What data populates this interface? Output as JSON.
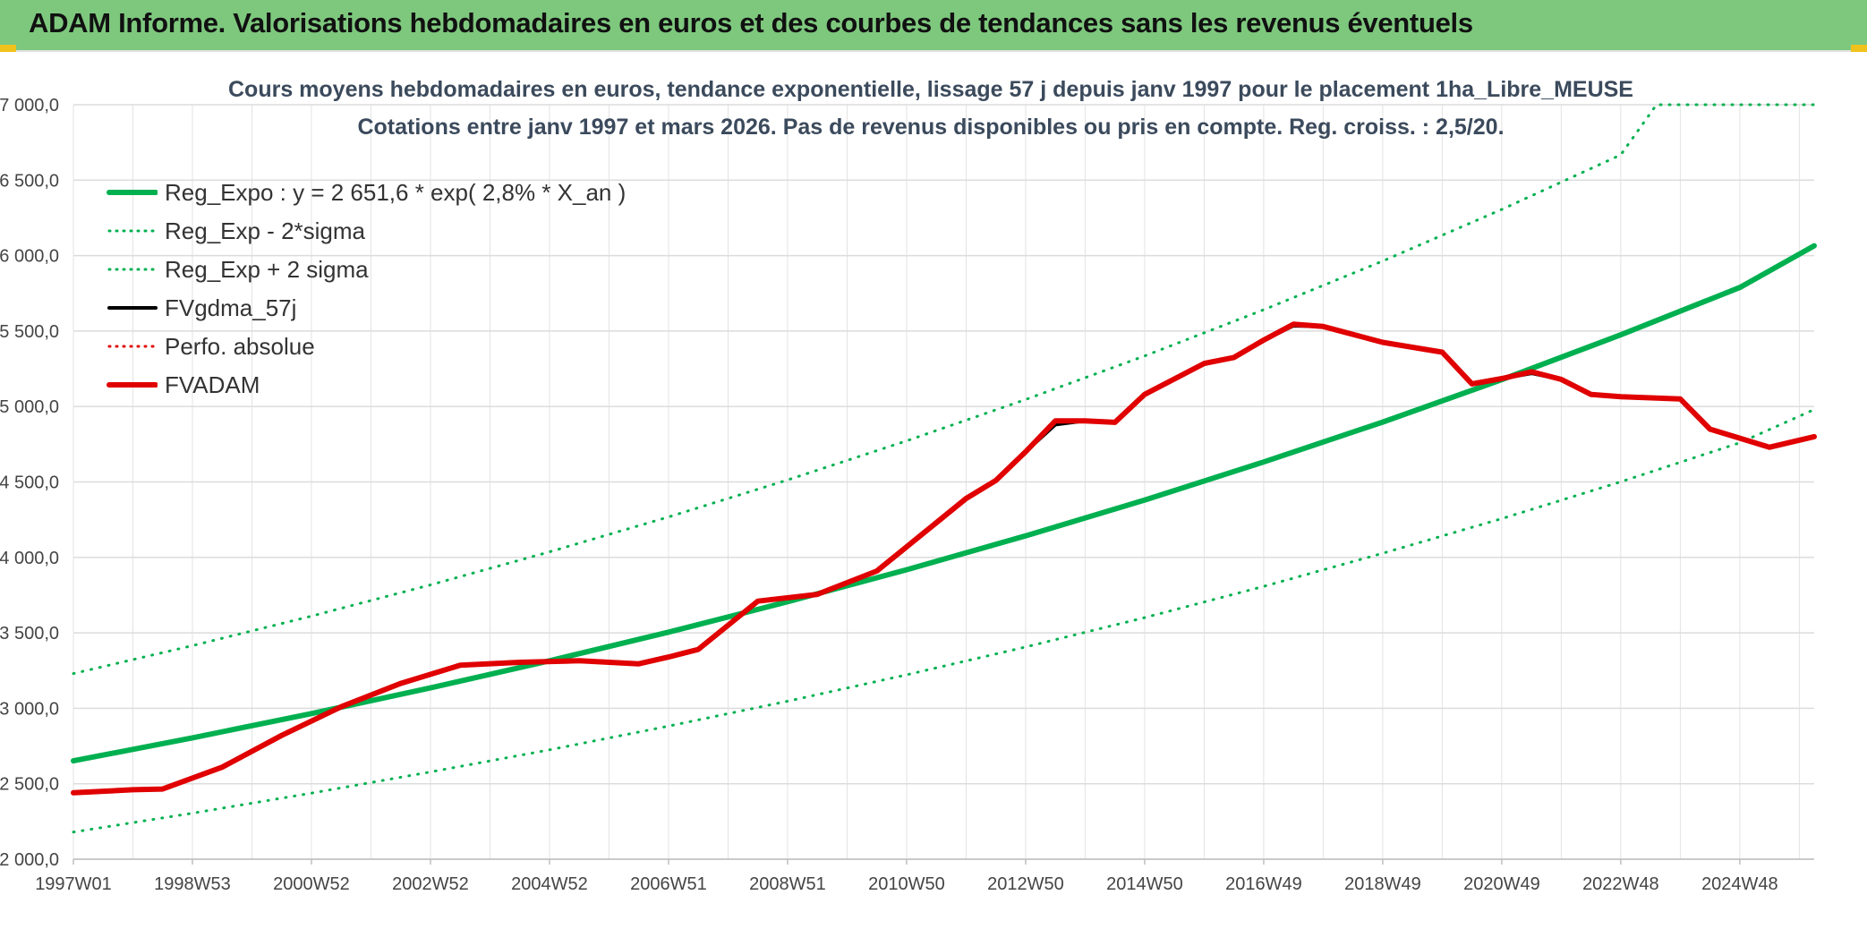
{
  "header": {
    "title": "ADAM Informe. Valorisations hebdomadaires en euros et des courbes de tendances sans les revenus éventuels"
  },
  "chart_data": {
    "type": "line",
    "title": "Cours moyens hebdomadaires en euros, tendance exponentielle, lissage 57 j depuis janv 1997 pour le placement 1ha_Libre_MEUSE",
    "subtitle": "Cotations entre janv 1997 et mars 2026. Pas de revenus disponibles ou pris en compte. Reg. croiss. : 2,5/20.",
    "xlabel": "",
    "ylabel": "",
    "x_ticks": [
      "1997W01",
      "1998W53",
      "2000W52",
      "2002W52",
      "2004W52",
      "2006W51",
      "2008W51",
      "2010W50",
      "2012W50",
      "2014W50",
      "2016W49",
      "2018W49",
      "2020W49",
      "2022W48",
      "2024W48"
    ],
    "x_range": [
      1997.0,
      2026.25
    ],
    "ylim": [
      2000,
      7000
    ],
    "y_ticks": [
      2000,
      2500,
      3000,
      3500,
      4000,
      4500,
      5000,
      5500,
      6000,
      6500,
      7000
    ],
    "y_tick_labels": [
      "2 000,0",
      "2 500,0",
      "3 000,0",
      "3 500,0",
      "4 000,0",
      "4 500,0",
      "5 000,0",
      "5 500,0",
      "6 000,0",
      "6 500,0",
      "7 000,0"
    ],
    "grid": true,
    "legend_position": "top-left",
    "series": [
      {
        "name": "Reg_Expo : y = 2 651,6 * exp( 2,8% *  X_an )",
        "color": "#00b050",
        "style": "solid",
        "width": 6,
        "x": [
          1997.0,
          1999.0,
          2001.0,
          2003.0,
          2005.0,
          2007.0,
          2009.0,
          2011.0,
          2013.0,
          2015.0,
          2017.0,
          2019.0,
          2021.0,
          2023.0,
          2025.0,
          2026.25
        ],
        "y": [
          2652,
          2804,
          2965,
          3135,
          3315,
          3505,
          3706,
          3918,
          4143,
          4380,
          4632,
          4897,
          5178,
          5475,
          5789,
          6065
        ]
      },
      {
        "name": "Reg_Exp - 2*sigma",
        "color": "#00b050",
        "style": "dotted",
        "width": 3,
        "x": [
          1997.0,
          1999.0,
          2001.0,
          2003.0,
          2005.0,
          2007.0,
          2009.0,
          2011.0,
          2013.0,
          2015.0,
          2017.0,
          2019.0,
          2021.0,
          2023.0,
          2025.0,
          2026.25
        ],
        "y": [
          2180,
          2305,
          2438,
          2578,
          2725,
          2882,
          3047,
          3222,
          3406,
          3601,
          3808,
          4027,
          4257,
          4501,
          4760,
          4980
        ]
      },
      {
        "name": "Reg_Exp + 2 sigma",
        "color": "#00b050",
        "style": "dotted",
        "width": 3,
        "x": [
          1997.0,
          1999.0,
          2001.0,
          2003.0,
          2005.0,
          2007.0,
          2009.0,
          2011.0,
          2013.0,
          2015.0,
          2017.0,
          2019.0,
          2021.0,
          2023.0,
          2023.6,
          2026.25
        ],
        "y": [
          3230,
          3415,
          3611,
          3818,
          4037,
          4268,
          4513,
          4772,
          5046,
          5335,
          5641,
          5964,
          6306,
          6668,
          7000,
          7000
        ]
      },
      {
        "name": "FVgdma_57j",
        "color": "#000000",
        "style": "solid",
        "width": 4,
        "x": [
          1997.0,
          1998.0,
          1998.5,
          1999.5,
          2000.5,
          2001.5,
          2002.5,
          2003.5,
          2004.5,
          2005.5,
          2006.5,
          2007.0,
          2007.5,
          2008.5,
          2009.5,
          2010.5,
          2011.5,
          2012.0,
          2012.5,
          2013.0,
          2013.5,
          2014.0,
          2014.5,
          2015.0,
          2016.0,
          2016.5,
          2017.0,
          2017.5,
          2018.0,
          2019.0,
          2020.0,
          2020.5,
          2021.0,
          2021.5,
          2022.0,
          2022.5,
          2023.0,
          2024.0,
          2024.5,
          2025.0,
          2025.5,
          2026.25
        ],
        "y": [
          2440,
          2460,
          2465,
          2610,
          2820,
          3010,
          3165,
          3285,
          3305,
          3315,
          3295,
          3340,
          3390,
          3710,
          3755,
          3910,
          4230,
          4390,
          4510,
          4700,
          4880,
          4905,
          4895,
          5080,
          5280,
          5325,
          5440,
          5535,
          5530,
          5425,
          5360,
          5150,
          5185,
          5220,
          5180,
          5080,
          5065,
          5050,
          4850,
          4790,
          4730,
          4800
        ]
      },
      {
        "name": "Perfo. absolue",
        "color": "#e00000",
        "style": "dotted",
        "width": 3,
        "x": [],
        "y": []
      },
      {
        "name": "FVADAM",
        "color": "#e00000",
        "style": "solid",
        "width": 6,
        "x": [
          1997.0,
          1998.0,
          1998.5,
          1999.5,
          2000.5,
          2001.5,
          2002.5,
          2003.5,
          2004.5,
          2005.5,
          2006.5,
          2007.0,
          2007.5,
          2008.5,
          2009.5,
          2010.5,
          2011.5,
          2012.0,
          2012.5,
          2013.0,
          2013.5,
          2014.0,
          2014.5,
          2015.0,
          2016.0,
          2016.5,
          2017.0,
          2017.5,
          2018.0,
          2019.0,
          2020.0,
          2020.5,
          2021.0,
          2021.5,
          2022.0,
          2022.5,
          2023.0,
          2024.0,
          2024.5,
          2025.0,
          2025.5,
          2026.25
        ],
        "y": [
          2440,
          2460,
          2465,
          2610,
          2820,
          3010,
          3165,
          3285,
          3305,
          3315,
          3295,
          3340,
          3390,
          3710,
          3755,
          3910,
          4230,
          4390,
          4510,
          4700,
          4905,
          4905,
          4895,
          5080,
          5285,
          5325,
          5440,
          5545,
          5530,
          5425,
          5360,
          5150,
          5185,
          5230,
          5180,
          5080,
          5065,
          5050,
          4850,
          4790,
          4730,
          4800
        ]
      }
    ]
  }
}
